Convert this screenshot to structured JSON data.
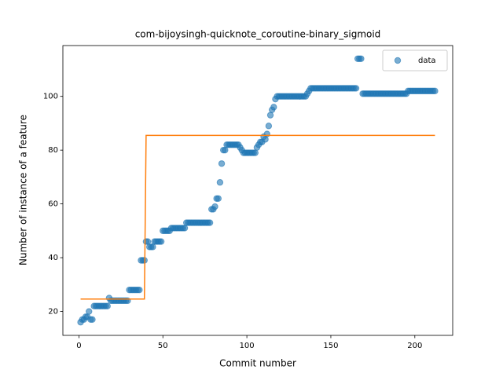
{
  "chart_data": {
    "type": "scatter",
    "title": "com-bijoysingh-quicknote_coroutine-binary_sigmoid",
    "xlabel": "Commit number",
    "ylabel": "Number of instance of a feature",
    "xlim": [
      -9.55,
      222.55
    ],
    "ylim": [
      11.1,
      118.9
    ],
    "xticks": [
      0,
      50,
      100,
      150,
      200
    ],
    "yticks": [
      20,
      40,
      60,
      80,
      100
    ],
    "legend": "upper right",
    "series": [
      {
        "name": "data",
        "color": "#1f77b4",
        "x": [
          1,
          2,
          3,
          4,
          5,
          6,
          7,
          8,
          9,
          10,
          11,
          12,
          13,
          14,
          15,
          16,
          17,
          18,
          19,
          20,
          21,
          22,
          23,
          24,
          25,
          26,
          27,
          28,
          29,
          30,
          31,
          32,
          33,
          34,
          35,
          36,
          37,
          38,
          39,
          40,
          41,
          42,
          43,
          44,
          45,
          46,
          47,
          48,
          49,
          50,
          51,
          52,
          53,
          54,
          55,
          56,
          57,
          58,
          59,
          60,
          61,
          62,
          63,
          64,
          65,
          66,
          67,
          68,
          69,
          70,
          71,
          72,
          73,
          74,
          75,
          76,
          77,
          78,
          79,
          80,
          81,
          82,
          83,
          84,
          85,
          86,
          87,
          88,
          89,
          90,
          91,
          92,
          93,
          94,
          95,
          96,
          97,
          98,
          99,
          100,
          101,
          102,
          103,
          104,
          105,
          106,
          107,
          108,
          109,
          110,
          111,
          112,
          113,
          114,
          115,
          116,
          117,
          118,
          119,
          120,
          121,
          122,
          123,
          124,
          125,
          126,
          127,
          128,
          129,
          130,
          131,
          132,
          133,
          134,
          135,
          136,
          137,
          138,
          139,
          140,
          141,
          142,
          143,
          144,
          145,
          146,
          147,
          148,
          149,
          150,
          151,
          152,
          153,
          154,
          155,
          156,
          157,
          158,
          159,
          160,
          161,
          162,
          163,
          164,
          165,
          166,
          167,
          168,
          169,
          170,
          171,
          172,
          173,
          174,
          175,
          176,
          177,
          178,
          179,
          180,
          181,
          182,
          183,
          184,
          185,
          186,
          187,
          188,
          189,
          190,
          191,
          192,
          193,
          194,
          195,
          196,
          197,
          198,
          199,
          200,
          201,
          202,
          203,
          204,
          205,
          206,
          207,
          208,
          209,
          210,
          211,
          212
        ],
        "values": [
          16,
          17,
          17,
          18,
          18,
          20,
          17,
          17,
          22,
          22,
          22,
          22,
          22,
          22,
          22,
          22,
          22,
          25,
          24,
          24,
          24,
          24,
          24,
          24,
          24,
          24,
          24,
          24,
          24,
          28,
          28,
          28,
          28,
          28,
          28,
          28,
          39,
          39,
          39,
          46,
          46,
          44,
          44,
          44,
          46,
          46,
          46,
          46,
          46,
          50,
          50,
          50,
          50,
          50,
          51,
          51,
          51,
          51,
          51,
          51,
          51,
          51,
          51,
          53,
          53,
          53,
          53,
          53,
          53,
          53,
          53,
          53,
          53,
          53,
          53,
          53,
          53,
          53,
          58,
          58,
          59,
          62,
          62,
          68,
          75,
          80,
          80,
          82,
          82,
          82,
          82,
          82,
          82,
          82,
          82,
          81,
          80,
          79,
          79,
          79,
          79,
          79,
          79,
          79,
          79,
          81,
          82,
          83,
          83,
          85,
          84,
          86,
          89,
          93,
          95,
          96,
          99,
          100,
          100,
          100,
          100,
          100,
          100,
          100,
          100,
          100,
          100,
          100,
          100,
          100,
          100,
          100,
          100,
          100,
          100,
          101,
          102,
          103,
          103,
          103,
          103,
          103,
          103,
          103,
          103,
          103,
          103,
          103,
          103,
          103,
          103,
          103,
          103,
          103,
          103,
          103,
          103,
          103,
          103,
          103,
          103,
          103,
          103,
          103,
          103,
          114,
          114,
          114,
          101,
          101,
          101,
          101,
          101,
          101,
          101,
          101,
          101,
          101,
          101,
          101,
          101,
          101,
          101,
          101,
          101,
          101,
          101,
          101,
          101,
          101,
          101,
          101,
          101,
          101,
          101,
          102,
          102,
          102,
          102,
          102,
          102,
          102,
          102,
          102,
          102,
          102,
          102,
          102,
          102,
          102,
          102,
          102
        ]
      }
    ],
    "line": {
      "color": "#ff7f0e",
      "x": [
        1,
        39,
        40,
        212
      ],
      "values": [
        24.6,
        24.6,
        85.5,
        85.5
      ]
    }
  }
}
